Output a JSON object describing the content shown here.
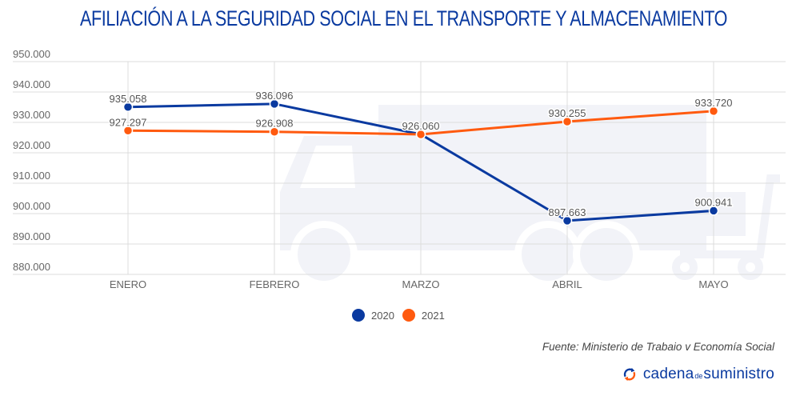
{
  "title": "AFILIACIÓN A LA SEGURIDAD SOCIAL EN EL TRANSPORTE Y ALMACENAMIENTO",
  "source": "Fuente: Ministerio de Trabaio v Economía Social",
  "logo": {
    "part1": "cadena",
    "part2": "de",
    "part3": "suministro"
  },
  "chart_data": {
    "type": "line",
    "title": "AFILIACIÓN A LA SEGURIDAD SOCIAL EN EL TRANSPORTE Y ALMACENAMIENTO",
    "xlabel": "",
    "ylabel": "",
    "categories": [
      "ENERO",
      "FEBRERO",
      "MARZO",
      "ABRIL",
      "MAYO"
    ],
    "ylim": [
      880000,
      950000
    ],
    "yticks": [
      950000,
      940000,
      930000,
      920000,
      910000,
      900000,
      890000,
      880000
    ],
    "ytick_labels": [
      "950.000",
      "940.000",
      "930.000",
      "920.000",
      "910.000",
      "900.000",
      "890.000",
      "880.000"
    ],
    "grid": true,
    "legend_position": "bottom-center",
    "series": [
      {
        "name": "2020",
        "color": "#0a3aa0",
        "values": [
          935058,
          936096,
          926060,
          897663,
          900941
        ],
        "labels": [
          "935.058",
          "936.096",
          "926.060",
          "897.663",
          "900.941"
        ]
      },
      {
        "name": "2021",
        "color": "#ff5a0f",
        "values": [
          927297,
          926908,
          926060,
          930255,
          933720
        ],
        "labels": [
          "927.297",
          "926.908",
          "926.060",
          "930.255",
          "933.720"
        ]
      }
    ]
  }
}
